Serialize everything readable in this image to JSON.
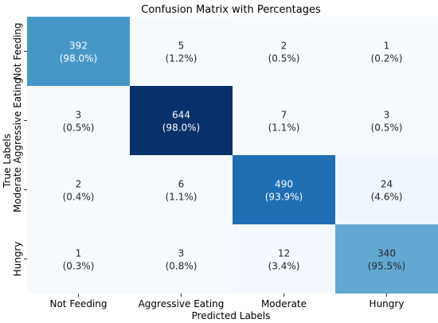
{
  "chart_data": {
    "type": "heatmap",
    "title": "Confusion Matrix with Percentages",
    "xlabel": "Predicted Labels",
    "ylabel": "True Labels",
    "x_categories": [
      "Not Feeding",
      "Aggressive Eating",
      "Moderate",
      "Hungry"
    ],
    "y_categories": [
      "Not Feeding",
      "Aggressive Eating",
      "Moderate",
      "Hungry"
    ],
    "values": [
      [
        392,
        5,
        2,
        1
      ],
      [
        3,
        644,
        7,
        3
      ],
      [
        2,
        6,
        490,
        24
      ],
      [
        1,
        3,
        12,
        340
      ]
    ],
    "percentages": [
      [
        "(98.0%)",
        "(1.2%)",
        "(0.5%)",
        "(0.2%)"
      ],
      [
        "(0.5%)",
        "(98.0%)",
        "(1.1%)",
        "(0.5%)"
      ],
      [
        "(0.4%)",
        "(1.1%)",
        "(93.9%)",
        "(4.6%)"
      ],
      [
        "(0.3%)",
        "(0.8%)",
        "(3.4%)",
        "(95.5%)"
      ]
    ],
    "colormap": "Blues",
    "color_range": [
      0,
      644
    ],
    "colorbar": false
  }
}
